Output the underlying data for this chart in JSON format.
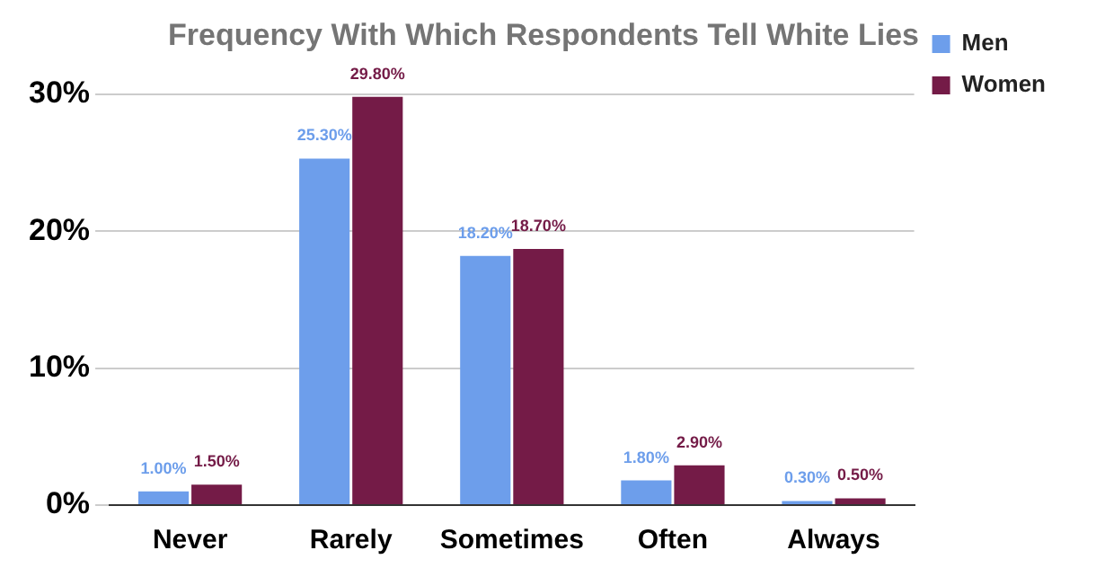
{
  "chart_data": {
    "type": "bar",
    "title": "Frequency With Which Respondents Tell White Lies",
    "categories": [
      "Never",
      "Rarely",
      "Sometimes",
      "Often",
      "Always"
    ],
    "series": [
      {
        "name": "Men",
        "color": "#6d9eeb",
        "values": [
          1.0,
          25.3,
          18.2,
          1.8,
          0.3
        ],
        "value_labels": [
          "1.00%",
          "25.30%",
          "18.20%",
          "1.80%",
          "0.30%"
        ]
      },
      {
        "name": "Women",
        "color": "#741b47",
        "values": [
          1.5,
          29.8,
          18.7,
          2.9,
          0.5
        ],
        "value_labels": [
          "1.50%",
          "29.80%",
          "18.70%",
          "2.90%",
          "0.50%"
        ]
      }
    ],
    "ylim": [
      0,
      30
    ],
    "yticks": [
      {
        "value": 0,
        "label": "0%"
      },
      {
        "value": 10,
        "label": "10%"
      },
      {
        "value": 20,
        "label": "20%"
      },
      {
        "value": 30,
        "label": "30%"
      }
    ],
    "grid": "y",
    "legend": "top right"
  }
}
